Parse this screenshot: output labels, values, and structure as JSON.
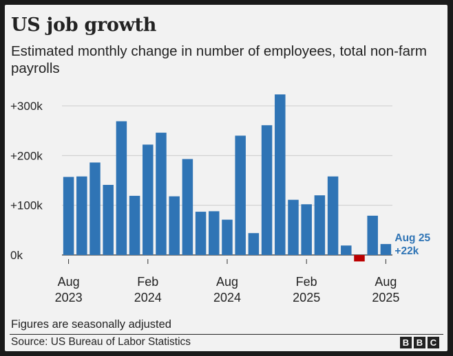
{
  "title": "US job growth",
  "subtitle": "Estimated monthly change in number of employees, total non-farm payrolls",
  "footnote": "Figures are seasonally adjusted",
  "source": "Source: US Bureau of Labor Statistics",
  "logo_letters": [
    "B",
    "B",
    "C"
  ],
  "colors": {
    "positive": "#2f74b5",
    "negative": "#bb0000",
    "grid": "#cccccc",
    "annotation": "#2f74b5"
  },
  "annotation": {
    "line1": "Aug 25",
    "line2": "+22k"
  },
  "chart_data": {
    "type": "bar",
    "title": "US job growth",
    "subtitle": "Estimated monthly change in number of employees, total non-farm payrolls",
    "categories": [
      "Aug 2023",
      "Sep 2023",
      "Oct 2023",
      "Nov 2023",
      "Dec 2023",
      "Jan 2024",
      "Feb 2024",
      "Mar 2024",
      "Apr 2024",
      "May 2024",
      "Jun 2024",
      "Jul 2024",
      "Aug 2024",
      "Sep 2024",
      "Oct 2024",
      "Nov 2024",
      "Dec 2024",
      "Jan 2025",
      "Feb 2025",
      "Mar 2025",
      "Apr 2025",
      "May 2025",
      "Jun 2025",
      "Jul 2025",
      "Aug 2025"
    ],
    "values": [
      157000,
      158000,
      186000,
      141000,
      269000,
      119000,
      222000,
      246000,
      118000,
      193000,
      87000,
      88000,
      71000,
      240000,
      44000,
      261000,
      323000,
      111000,
      102000,
      120000,
      158000,
      19000,
      -13000,
      79000,
      22000
    ],
    "ylim": [
      0,
      300000
    ],
    "yticks": [
      {
        "value": 0,
        "label": "0k"
      },
      {
        "value": 100000,
        "label": "+100k"
      },
      {
        "value": 200000,
        "label": "+200k"
      },
      {
        "value": 300000,
        "label": "+300k"
      }
    ],
    "xticks": [
      {
        "index": 0,
        "line1": "Aug",
        "line2": "2023"
      },
      {
        "index": 6,
        "line1": "Feb",
        "line2": "2024"
      },
      {
        "index": 12,
        "line1": "Aug",
        "line2": "2024"
      },
      {
        "index": 18,
        "line1": "Feb",
        "line2": "2025"
      },
      {
        "index": 24,
        "line1": "Aug",
        "line2": "2025"
      }
    ],
    "grid": true,
    "legend": "none"
  }
}
